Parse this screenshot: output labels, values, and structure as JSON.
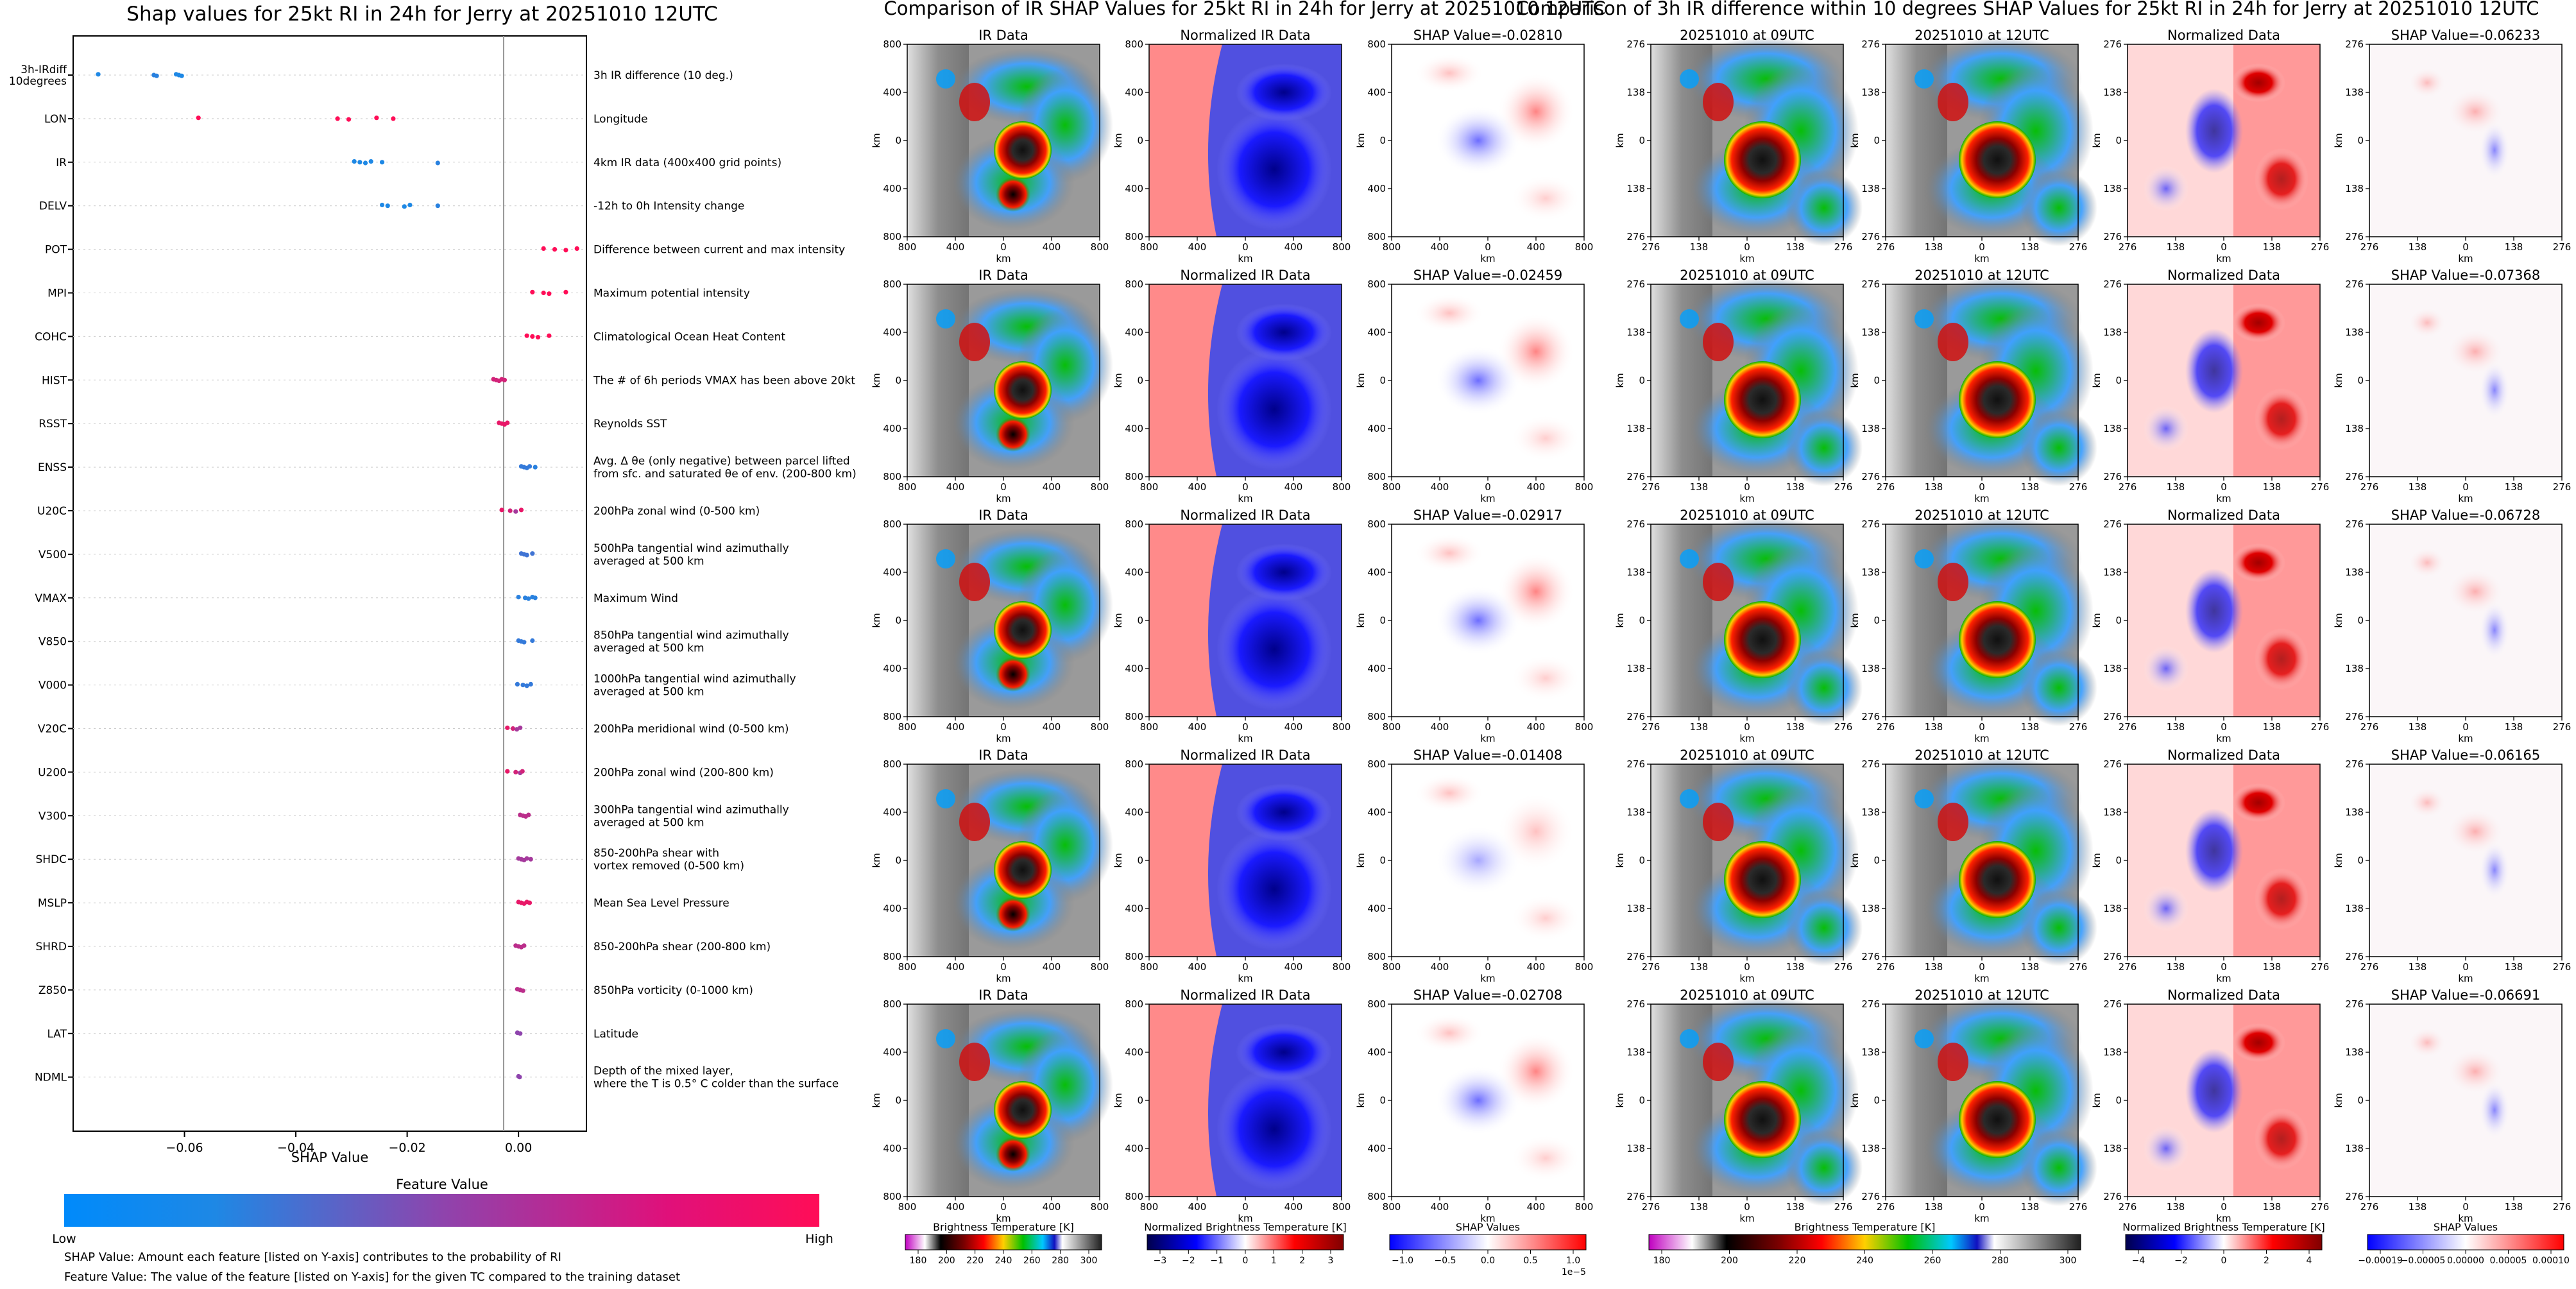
{
  "left_panel": {
    "title": "Shap values for 25kt RI in 24h for Jerry at 20251010 12UTC",
    "xlabel": "SHAP Value",
    "feature_value_label": "Feature Value",
    "low_label": "Low",
    "high_label": "High",
    "note1": "SHAP Value: Amount each feature [listed on Y-axis] contributes to the probability of RI",
    "note2": "Feature Value: The value of the feature [listed on Y-axis] for the given TC compared to the training dataset",
    "colors": {
      "low": "#1e88e5",
      "mid": "#8e44ad",
      "high": "#ff0d57"
    }
  },
  "chart_data": [
    {
      "type": "scatter",
      "title": "Shap values for 25kt RI in 24h for Jerry at 20251010 12UTC",
      "xlabel": "SHAP Value",
      "xlim": [
        -0.08,
        0.0122
      ],
      "xticks": [
        -0.06,
        -0.04,
        -0.02,
        0.0
      ],
      "xtick_labels": [
        "−0.06",
        "−0.04",
        "−0.02",
        "0.00"
      ],
      "features": [
        {
          "name": "3h-IRdiff\n10degrees",
          "desc": "3h IR difference (10 deg.)",
          "points": [
            [
              -0.0755,
              0.0
            ],
            [
              -0.0655,
              0.05
            ],
            [
              -0.065,
              0.05
            ],
            [
              -0.0615,
              0.0
            ],
            [
              -0.061,
              0.0
            ],
            [
              -0.0605,
              0.0
            ]
          ]
        },
        {
          "name": "LON",
          "desc": "Longitude",
          "points": [
            [
              -0.0575,
              1
            ],
            [
              -0.0325,
              1
            ],
            [
              -0.0305,
              1
            ],
            [
              -0.0255,
              1
            ],
            [
              -0.0225,
              1
            ]
          ]
        },
        {
          "name": "IR",
          "desc": "4km IR data (400x400 grid points)",
          "points": [
            [
              -0.0295,
              0.0
            ],
            [
              -0.0285,
              0.0
            ],
            [
              -0.0275,
              0.0
            ],
            [
              -0.0265,
              0.0
            ],
            [
              -0.0245,
              0.0
            ],
            [
              -0.0145,
              0.05
            ]
          ]
        },
        {
          "name": "DELV",
          "desc": "-12h to 0h Intensity change",
          "points": [
            [
              -0.0245,
              0.0
            ],
            [
              -0.0235,
              0.0
            ],
            [
              -0.0205,
              0.0
            ],
            [
              -0.0195,
              0.0
            ],
            [
              -0.0145,
              0.05
            ]
          ]
        },
        {
          "name": "POT",
          "desc": "Difference between current and max intensity",
          "points": [
            [
              0.0045,
              1
            ],
            [
              0.0065,
              1
            ],
            [
              0.0085,
              1
            ],
            [
              0.0105,
              1
            ]
          ]
        },
        {
          "name": "MPI",
          "desc": "Maximum potential intensity",
          "points": [
            [
              0.0025,
              1
            ],
            [
              0.0045,
              1
            ],
            [
              0.0055,
              1
            ],
            [
              0.0085,
              1
            ]
          ]
        },
        {
          "name": "COHC",
          "desc": "Climatological Ocean Heat Content",
          "points": [
            [
              0.0015,
              1
            ],
            [
              0.0025,
              1
            ],
            [
              0.0035,
              1
            ],
            [
              0.0055,
              1
            ]
          ]
        },
        {
          "name": "HIST",
          "desc": "The # of 6h periods VMAX has been above 20kt",
          "points": [
            [
              -0.0045,
              0.8
            ],
            [
              -0.004,
              0.8
            ],
            [
              -0.0035,
              0.8
            ],
            [
              -0.003,
              0.8
            ],
            [
              -0.0025,
              0.8
            ]
          ]
        },
        {
          "name": "RSST",
          "desc": "Reynolds SST",
          "points": [
            [
              -0.0035,
              0.9
            ],
            [
              -0.003,
              0.9
            ],
            [
              -0.0025,
              0.9
            ],
            [
              -0.002,
              0.9
            ]
          ]
        },
        {
          "name": "ENSS",
          "desc": "Avg. Δ θe (only negative) between parcel lifted\nfrom sfc. and saturated θe of env. (200-800 km)",
          "points": [
            [
              0.0005,
              0.1
            ],
            [
              0.001,
              0.1
            ],
            [
              0.0015,
              0.1
            ],
            [
              0.002,
              0.1
            ],
            [
              0.003,
              0.05
            ]
          ]
        },
        {
          "name": "U20C",
          "desc": "200hPa zonal wind (0-500 km)",
          "points": [
            [
              -0.003,
              0.9
            ],
            [
              -0.0015,
              0.8
            ],
            [
              -0.0005,
              0.6
            ],
            [
              0.0005,
              0.9
            ]
          ]
        },
        {
          "name": "V500",
          "desc": "500hPa tangential wind azimuthally\naveraged at 500 km",
          "points": [
            [
              0.0005,
              0.15
            ],
            [
              0.001,
              0.15
            ],
            [
              0.0015,
              0.15
            ],
            [
              0.0025,
              0.15
            ]
          ]
        },
        {
          "name": "VMAX",
          "desc": "Maximum Wind",
          "points": [
            [
              0.0,
              0.05
            ],
            [
              0.0012,
              0.05
            ],
            [
              0.0018,
              0.05
            ],
            [
              0.0025,
              0.05
            ],
            [
              0.003,
              0.05
            ]
          ]
        },
        {
          "name": "V850",
          "desc": "850hPa tangential wind azimuthally\naveraged at 500 km",
          "points": [
            [
              0.0,
              0.1
            ],
            [
              0.0005,
              0.1
            ],
            [
              0.001,
              0.1
            ],
            [
              0.0025,
              0.1
            ]
          ]
        },
        {
          "name": "V000",
          "desc": "1000hPa tangential wind azimuthally\naveraged at 500 km",
          "points": [
            [
              -0.0002,
              0.1
            ],
            [
              0.0008,
              0.1
            ],
            [
              0.0015,
              0.1
            ],
            [
              0.0022,
              0.1
            ]
          ]
        },
        {
          "name": "V20C",
          "desc": "200hPa meridional wind (0-500 km)",
          "points": [
            [
              -0.002,
              0.9
            ],
            [
              -0.001,
              0.8
            ],
            [
              -0.0003,
              0.6
            ],
            [
              0.0003,
              0.6
            ]
          ]
        },
        {
          "name": "U200",
          "desc": "200hPa zonal wind (200-800 km)",
          "points": [
            [
              -0.002,
              0.9
            ],
            [
              -0.0005,
              0.8
            ],
            [
              0.0003,
              0.6
            ],
            [
              0.0007,
              0.8
            ]
          ]
        },
        {
          "name": "V300",
          "desc": "300hPa tangential wind azimuthally\naveraged at 500 km",
          "points": [
            [
              0.0003,
              0.7
            ],
            [
              0.0008,
              0.7
            ],
            [
              0.0013,
              0.7
            ],
            [
              0.0018,
              0.7
            ]
          ]
        },
        {
          "name": "SHDC",
          "desc": "850-200hPa shear with\nvortex removed (0-500 km)",
          "points": [
            [
              0.0,
              0.6
            ],
            [
              0.0005,
              0.6
            ],
            [
              0.001,
              0.6
            ],
            [
              0.0015,
              0.6
            ],
            [
              0.0022,
              0.6
            ]
          ]
        },
        {
          "name": "MSLP",
          "desc": "Mean Sea Level Pressure",
          "points": [
            [
              0.0,
              0.9
            ],
            [
              0.0005,
              0.9
            ],
            [
              0.001,
              0.9
            ],
            [
              0.0015,
              0.9
            ],
            [
              0.002,
              0.9
            ]
          ]
        },
        {
          "name": "SHRD",
          "desc": "850-200hPa shear (200-800 km)",
          "points": [
            [
              -0.0005,
              0.7
            ],
            [
              0.0,
              0.7
            ],
            [
              0.0005,
              0.7
            ],
            [
              0.001,
              0.7
            ]
          ]
        },
        {
          "name": "Z850",
          "desc": "850hPa vorticity (0-1000 km)",
          "points": [
            [
              -0.0002,
              0.7
            ],
            [
              0.0003,
              0.7
            ],
            [
              0.0008,
              0.7
            ]
          ]
        },
        {
          "name": "LAT",
          "desc": "Latitude",
          "points": [
            [
              -0.0002,
              0.5
            ],
            [
              0.0003,
              0.5
            ]
          ]
        },
        {
          "name": "NDML",
          "desc": "Depth of the mixed layer,\nwhere the T is 0.5° C colder than the surface",
          "points": [
            [
              0.0,
              0.5
            ],
            [
              0.0002,
              0.5
            ]
          ]
        }
      ]
    },
    {
      "type": "heatmap",
      "title": "Comparison of IR SHAP Values for 25kt RI in 24h for Jerry at 20251010 12UTC",
      "column_titles": [
        "IR Data",
        "Normalized IR Data"
      ],
      "shap_titles": [
        "SHAP Value=-0.02810",
        "SHAP Value=-0.02459",
        "SHAP Value=-0.02917",
        "SHAP Value=-0.01408",
        "SHAP Value=-0.02708"
      ],
      "axis_label": "km",
      "ticks": [
        "800",
        "400",
        "0",
        "400",
        "800"
      ],
      "colorbars": [
        {
          "label": "Brightness Temperature [K]",
          "ticks": [
            "180",
            "200",
            "220",
            "240",
            "260",
            "280",
            "300"
          ]
        },
        {
          "label": "Normalized Brightness Temperature [K]",
          "ticks": [
            "−3",
            "−2",
            "−1",
            "0",
            "1",
            "2",
            "3"
          ]
        },
        {
          "label": "SHAP Values",
          "ticks": [
            "−1.0",
            "−0.5",
            "0.0",
            "0.5",
            "1.0"
          ],
          "exponent": "1e−5"
        }
      ]
    },
    {
      "type": "heatmap",
      "title": "Comparison of 3h IR difference within 10 degrees SHAP Values for 25kt RI in 24h for Jerry at 20251010 12UTC",
      "column_titles": [
        "20251010 at 09UTC",
        "20251010 at 12UTC",
        "Normalized Data"
      ],
      "shap_titles": [
        "SHAP Value=-0.06233",
        "SHAP Value=-0.07368",
        "SHAP Value=-0.06728",
        "SHAP Value=-0.06165",
        "SHAP Value=-0.06691"
      ],
      "axis_label": "km",
      "ticks": [
        "276",
        "138",
        "0",
        "138",
        "276"
      ],
      "colorbars": [
        {
          "label": "Brightness Temperature [K]",
          "ticks": [
            "180",
            "200",
            "220",
            "240",
            "260",
            "280",
            "300"
          ]
        },
        {
          "label": "Normalized Brightness Temperature [K]",
          "ticks": [
            "−4",
            "−2",
            "0",
            "2",
            "4"
          ]
        },
        {
          "label": "SHAP Values",
          "ticks": [
            "−0.00019",
            "−0.00005",
            "0.00000",
            "0.00005",
            "0.00010"
          ]
        }
      ]
    }
  ]
}
